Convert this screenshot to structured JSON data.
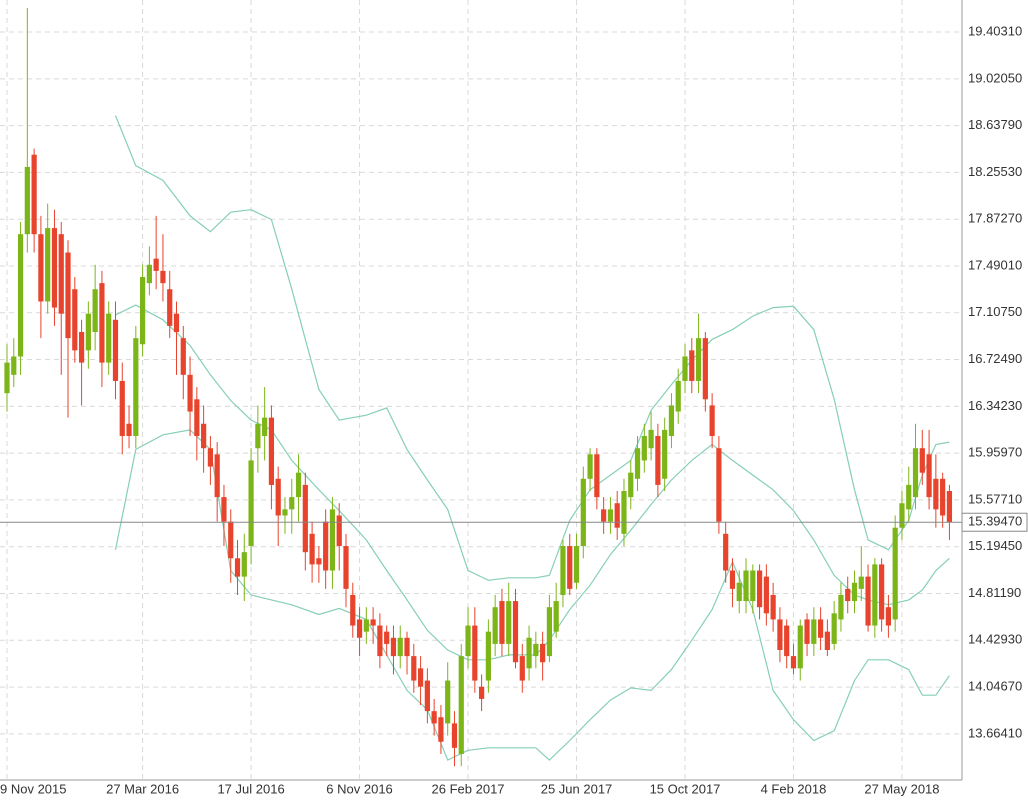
{
  "chart_data": {
    "type": "candlestick",
    "categories": [
      "9 Nov 2015",
      null,
      null,
      null,
      null,
      null,
      null,
      null,
      null,
      null,
      null,
      null,
      null,
      null,
      null,
      null,
      null,
      null,
      null,
      null,
      "27 Mar 2016",
      null,
      null,
      null,
      null,
      null,
      null,
      null,
      null,
      null,
      null,
      null,
      null,
      null,
      null,
      null,
      "17 Jul 2016",
      null,
      null,
      null,
      null,
      null,
      null,
      null,
      null,
      null,
      null,
      null,
      null,
      null,
      null,
      null,
      "6 Nov 2016",
      null,
      null,
      null,
      null,
      null,
      null,
      null,
      null,
      null,
      null,
      null,
      null,
      null,
      null,
      null,
      "26 Feb 2017",
      null,
      null,
      null,
      null,
      null,
      null,
      null,
      null,
      null,
      null,
      null,
      null,
      null,
      null,
      null,
      "25 Jun 2017",
      null,
      null,
      null,
      null,
      null,
      null,
      null,
      null,
      null,
      null,
      null,
      null,
      null,
      null,
      null,
      "15 Oct 2017",
      null,
      null,
      null,
      null,
      null,
      null,
      null,
      null,
      null,
      null,
      null,
      null,
      null,
      null,
      null,
      "4 Feb 2018",
      null,
      null,
      null,
      null,
      null,
      null,
      null,
      null,
      null,
      null,
      null,
      null,
      null,
      null,
      null,
      "27 May 2018",
      null,
      null,
      null,
      null,
      null,
      null,
      null
    ],
    "open": [
      16.45,
      16.6,
      16.75,
      17.75,
      18.4,
      17.75,
      17.2,
      17.8,
      17.75,
      17.6,
      17.3,
      16.95,
      16.8,
      16.95,
      17.35,
      16.7,
      17.05,
      16.55,
      16.2,
      16.1,
      16.85,
      17.35,
      17.55,
      17.45,
      17.3,
      17.1,
      16.9,
      16.6,
      16.4,
      16.2,
      16.0,
      15.95,
      15.6,
      15.4,
      15.1,
      14.95,
      15.2,
      16.0,
      16.1,
      16.25,
      15.75,
      15.45,
      15.5,
      15.6,
      15.7,
      15.3,
      15.1,
      15.4,
      15.0,
      15.45,
      15.2,
      14.8,
      14.6,
      14.5,
      14.6,
      14.55,
      14.5,
      14.45,
      14.3,
      14.45,
      14.3,
      14.2,
      14.1,
      13.85,
      13.8,
      13.75,
      13.75,
      13.5,
      14.3,
      14.55,
      14.05,
      14.1,
      14.4,
      14.75,
      14.4,
      14.75,
      14.3,
      14.2,
      14.3,
      14.4,
      14.3,
      14.5,
      14.8,
      15.2,
      14.9,
      15.2,
      15.75,
      15.95,
      15.5,
      15.4,
      15.55,
      15.3,
      15.6,
      15.75,
      15.9,
      16.0,
      16.1,
      15.75,
      16.1,
      16.3,
      16.55,
      16.8,
      16.55,
      16.9,
      16.35,
      16.0,
      15.3,
      15.0,
      14.75,
      14.75,
      14.75,
      15.0,
      14.95,
      14.8,
      14.6,
      14.55,
      14.3,
      14.2,
      14.6,
      14.4,
      14.6,
      14.5,
      14.4,
      14.6,
      14.85,
      14.75,
      14.85,
      14.95,
      14.55,
      15.05,
      14.7,
      14.6,
      15.35,
      15.5,
      15.6,
      16.0,
      15.95,
      15.75,
      15.75,
      15.65
    ],
    "high": [
      16.85,
      16.9,
      17.85,
      19.6,
      18.45,
      17.9,
      18.0,
      17.95,
      17.85,
      17.7,
      17.4,
      17.05,
      17.2,
      17.5,
      17.45,
      17.2,
      17.2,
      16.7,
      16.35,
      17.0,
      17.5,
      17.65,
      17.9,
      17.75,
      17.45,
      17.2,
      17.0,
      16.75,
      16.5,
      16.35,
      16.1,
      16.05,
      15.7,
      15.5,
      15.25,
      15.3,
      16.0,
      16.35,
      16.5,
      16.35,
      15.85,
      15.6,
      15.75,
      15.95,
      15.8,
      15.4,
      15.2,
      15.5,
      15.6,
      15.55,
      15.3,
      14.9,
      14.7,
      14.7,
      14.7,
      14.65,
      14.55,
      14.55,
      14.55,
      14.5,
      14.4,
      14.3,
      14.2,
      13.95,
      13.9,
      14.25,
      13.85,
      14.4,
      14.7,
      14.7,
      14.15,
      14.6,
      14.8,
      14.85,
      14.9,
      14.85,
      14.4,
      14.55,
      14.5,
      14.5,
      14.8,
      14.9,
      15.25,
      15.3,
      15.3,
      15.85,
      16.0,
      16.0,
      15.6,
      15.6,
      15.65,
      15.75,
      15.9,
      16.1,
      16.2,
      16.3,
      16.2,
      16.25,
      16.45,
      16.65,
      16.85,
      16.9,
      17.1,
      16.95,
      16.45,
      16.1,
      15.4,
      15.1,
      15.0,
      15.1,
      15.05,
      15.05,
      15.05,
      14.9,
      14.7,
      14.6,
      14.4,
      14.6,
      14.65,
      14.7,
      14.7,
      14.6,
      14.75,
      14.9,
      14.95,
      15.0,
      15.2,
      15.05,
      15.1,
      15.1,
      14.8,
      15.45,
      15.65,
      15.85,
      16.2,
      16.15,
      16.15,
      15.95,
      15.8,
      15.7
    ],
    "low": [
      16.3,
      16.5,
      16.6,
      17.6,
      17.6,
      16.9,
      17.1,
      17.0,
      16.6,
      16.25,
      16.7,
      16.35,
      16.65,
      16.8,
      16.5,
      16.6,
      16.4,
      15.95,
      16.0,
      16.0,
      16.75,
      17.25,
      17.3,
      17.2,
      16.9,
      16.6,
      16.4,
      16.1,
      15.9,
      15.8,
      15.7,
      15.4,
      15.2,
      14.9,
      14.8,
      14.75,
      15.05,
      15.8,
      15.9,
      15.5,
      15.2,
      15.3,
      15.3,
      15.4,
      15.0,
      14.9,
      14.9,
      14.85,
      14.85,
      15.0,
      14.7,
      14.45,
      14.3,
      14.4,
      14.4,
      14.2,
      14.3,
      14.15,
      14.2,
      14.15,
      14.0,
      13.9,
      13.75,
      13.65,
      13.5,
      13.65,
      13.4,
      13.4,
      14.2,
      14.0,
      13.85,
      14.0,
      14.3,
      14.3,
      14.3,
      14.2,
      14.0,
      14.1,
      14.2,
      14.1,
      14.25,
      14.45,
      14.7,
      14.8,
      14.85,
      15.1,
      15.65,
      15.5,
      15.3,
      15.3,
      15.25,
      15.2,
      15.5,
      15.65,
      15.8,
      15.9,
      15.6,
      15.65,
      16.0,
      16.2,
      16.45,
      16.45,
      16.45,
      16.3,
      16.0,
      15.3,
      14.9,
      14.7,
      14.65,
      14.65,
      14.65,
      14.6,
      14.55,
      14.5,
      14.25,
      14.2,
      14.15,
      14.1,
      14.3,
      14.3,
      14.35,
      14.3,
      14.35,
      14.5,
      14.65,
      14.65,
      14.75,
      14.5,
      14.45,
      14.5,
      14.45,
      14.5,
      15.25,
      15.4,
      15.5,
      15.7,
      15.5,
      15.35,
      15.35,
      15.25
    ],
    "close": [
      16.7,
      16.75,
      17.75,
      18.3,
      17.75,
      17.2,
      17.8,
      17.15,
      17.1,
      16.9,
      16.8,
      16.7,
      17.1,
      17.3,
      16.7,
      17.1,
      16.55,
      16.1,
      16.1,
      16.9,
      17.4,
      17.5,
      17.45,
      17.35,
      17.0,
      16.95,
      16.6,
      16.3,
      16.1,
      16.0,
      15.85,
      15.6,
      15.4,
      15.1,
      14.95,
      15.15,
      15.9,
      16.2,
      16.25,
      15.7,
      15.45,
      15.5,
      15.6,
      15.8,
      15.15,
      15.05,
      15.05,
      15.0,
      15.5,
      15.2,
      14.85,
      14.55,
      14.45,
      14.6,
      14.55,
      14.3,
      14.4,
      14.3,
      14.45,
      14.3,
      14.1,
      14.05,
      13.85,
      13.75,
      13.6,
      14.1,
      13.55,
      14.3,
      14.55,
      14.1,
      13.95,
      14.5,
      14.7,
      14.4,
      14.75,
      14.25,
      14.1,
      14.45,
      14.4,
      14.25,
      14.7,
      14.75,
      15.2,
      14.85,
      15.2,
      15.75,
      15.95,
      15.6,
      15.4,
      15.5,
      15.35,
      15.65,
      15.8,
      16.0,
      16.1,
      16.15,
      15.7,
      16.15,
      16.35,
      16.55,
      16.75,
      16.55,
      16.9,
      16.4,
      16.1,
      15.4,
      15.0,
      14.85,
      14.9,
      15.0,
      15.0,
      14.7,
      14.65,
      14.6,
      14.35,
      14.3,
      14.2,
      14.55,
      14.4,
      14.6,
      14.45,
      14.35,
      14.65,
      14.8,
      14.75,
      14.9,
      14.95,
      14.55,
      15.05,
      14.6,
      14.55,
      15.35,
      15.55,
      15.7,
      16.0,
      15.8,
      15.6,
      15.5,
      15.45,
      15.3947
    ],
    "up_color": "#7cb518",
    "down_color": "#e8432c",
    "bands": {
      "color": "#86cfb4",
      "x": [
        16,
        19,
        23,
        27,
        30,
        33,
        36,
        39,
        42,
        46,
        49,
        53,
        56,
        59,
        62,
        65,
        68,
        71,
        74,
        78,
        80,
        83,
        86,
        89,
        92,
        95,
        98,
        101,
        104,
        107,
        110,
        113,
        116,
        119,
        122,
        125,
        127,
        130,
        133,
        135,
        137,
        139
      ],
      "upper": [
        18.72,
        18.31,
        18.19,
        17.9,
        17.77,
        17.93,
        17.95,
        17.87,
        17.3,
        16.48,
        16.23,
        16.27,
        16.33,
        15.99,
        15.74,
        15.5,
        15.0,
        14.92,
        14.94,
        14.94,
        14.96,
        15.41,
        15.66,
        15.78,
        15.9,
        16.31,
        16.52,
        16.72,
        16.89,
        16.97,
        17.08,
        17.15,
        17.16,
        16.97,
        16.4,
        15.66,
        15.25,
        15.17,
        15.41,
        15.78,
        16.03,
        16.05
      ],
      "middle": [
        17.09,
        17.17,
        17.05,
        16.84,
        16.6,
        16.39,
        16.23,
        16.15,
        15.9,
        15.66,
        15.49,
        15.25,
        15.0,
        14.76,
        14.51,
        14.35,
        14.27,
        14.27,
        14.31,
        14.31,
        14.43,
        14.68,
        14.88,
        15.13,
        15.33,
        15.54,
        15.74,
        15.9,
        16.03,
        15.9,
        15.78,
        15.66,
        15.49,
        15.25,
        14.96,
        14.8,
        14.76,
        14.72,
        14.76,
        14.84,
        15.0,
        15.1
      ],
      "lower": [
        15.17,
        15.99,
        16.11,
        16.15,
        15.99,
        15.0,
        14.8,
        14.76,
        14.72,
        14.64,
        14.69,
        14.6,
        14.31,
        14.02,
        13.86,
        13.45,
        13.53,
        13.55,
        13.55,
        13.55,
        13.45,
        13.61,
        13.78,
        13.94,
        14.04,
        14.02,
        14.19,
        14.43,
        14.68,
        15.07,
        14.68,
        14.02,
        13.78,
        13.61,
        13.69,
        14.1,
        14.27,
        14.27,
        14.19,
        13.98,
        13.98,
        14.14
      ]
    },
    "last_price": {
      "value": 15.3947,
      "label": "15.39470"
    },
    "ylim": [
      13.287,
      19.665
    ],
    "yticks": [
      {
        "value": 19.4031,
        "label": "19.40310"
      },
      {
        "value": 19.0205,
        "label": "19.02050"
      },
      {
        "value": 18.6379,
        "label": "18.63790"
      },
      {
        "value": 18.2553,
        "label": "18.25530"
      },
      {
        "value": 17.8727,
        "label": "17.87270"
      },
      {
        "value": 17.4901,
        "label": "17.49010"
      },
      {
        "value": 17.1075,
        "label": "17.10750"
      },
      {
        "value": 16.7249,
        "label": "16.72490"
      },
      {
        "value": 16.3423,
        "label": "16.34230"
      },
      {
        "value": 15.9597,
        "label": "15.95970"
      },
      {
        "value": 15.5771,
        "label": "15.57710"
      },
      {
        "value": 15.1945,
        "label": "15.19450"
      },
      {
        "value": 14.8119,
        "label": "14.81190"
      },
      {
        "value": 14.4293,
        "label": "14.42930"
      },
      {
        "value": 14.0467,
        "label": "14.04670"
      },
      {
        "value": 13.6641,
        "label": "13.66410"
      }
    ],
    "grid": true
  }
}
